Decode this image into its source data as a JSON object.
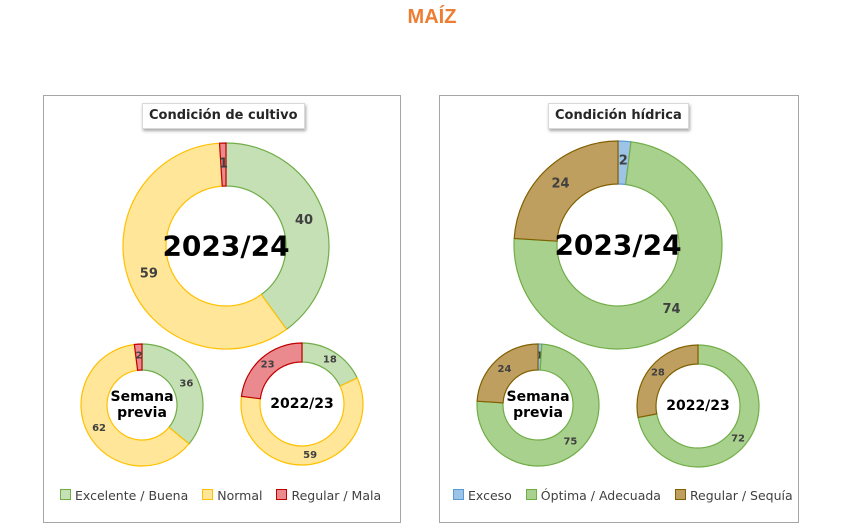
{
  "page_title": "MAÍZ",
  "panels": [
    {
      "title": "Condición  de cultivo",
      "legend": [
        {
          "label": "Excelente / Buena",
          "color": "#c5e0b4",
          "border": "#70ad47"
        },
        {
          "label": "Normal",
          "color": "#ffe699",
          "border": "#ffc000"
        },
        {
          "label": "Regular / Mala",
          "color": "#ea8a8f",
          "border": "#c00000"
        }
      ]
    },
    {
      "title": "Condición  hídrica",
      "legend": [
        {
          "label": "Exceso",
          "color": "#9dc3e6",
          "border": "#5b9bd5"
        },
        {
          "label": "Óptima / Adecuada",
          "color": "#a9d18e",
          "border": "#70ad47"
        },
        {
          "label": "Regular / Sequía",
          "color": "#bf9f5f",
          "border": "#806000"
        }
      ]
    }
  ],
  "chart_data": [
    {
      "type": "pie",
      "panel": "Condición  de cultivo",
      "center_label": "2023/24",
      "categories": [
        "Excelente / Buena",
        "Normal",
        "Regular / Mala"
      ],
      "values": [
        40,
        59,
        1
      ],
      "colors": [
        "#c5e0b4",
        "#ffe699",
        "#ea8a8f"
      ],
      "borders": [
        "#70ad47",
        "#ffc000",
        "#c00000"
      ]
    },
    {
      "type": "pie",
      "panel": "Condición  de cultivo",
      "center_label": "Semana\nprevia",
      "categories": [
        "Excelente / Buena",
        "Normal",
        "Regular / Mala"
      ],
      "values": [
        36,
        62,
        2
      ],
      "colors": [
        "#c5e0b4",
        "#ffe699",
        "#ea8a8f"
      ],
      "borders": [
        "#70ad47",
        "#ffc000",
        "#c00000"
      ]
    },
    {
      "type": "pie",
      "panel": "Condición  de cultivo",
      "center_label": "2022/23",
      "categories": [
        "Excelente / Buena",
        "Normal",
        "Regular / Mala"
      ],
      "values": [
        18,
        59,
        23
      ],
      "colors": [
        "#c5e0b4",
        "#ffe699",
        "#ea8a8f"
      ],
      "borders": [
        "#70ad47",
        "#ffc000",
        "#c00000"
      ]
    },
    {
      "type": "pie",
      "panel": "Condición  hídrica",
      "center_label": "2023/24",
      "categories": [
        "Exceso",
        "Óptima / Adecuada",
        "Regular / Sequía"
      ],
      "values": [
        2,
        74,
        24
      ],
      "colors": [
        "#9dc3e6",
        "#a9d18e",
        "#bf9f5f"
      ],
      "borders": [
        "#5b9bd5",
        "#70ad47",
        "#806000"
      ]
    },
    {
      "type": "pie",
      "panel": "Condición  hídrica",
      "center_label": "Semana\nprevia",
      "categories": [
        "Exceso",
        "Óptima / Adecuada",
        "Regular / Sequía"
      ],
      "values": [
        1,
        75,
        24
      ],
      "colors": [
        "#9dc3e6",
        "#a9d18e",
        "#bf9f5f"
      ],
      "borders": [
        "#5b9bd5",
        "#70ad47",
        "#806000"
      ]
    },
    {
      "type": "pie",
      "panel": "Condición  hídrica",
      "center_label": "2022/23",
      "categories": [
        "Exceso",
        "Óptima / Adecuada",
        "Regular / Sequía"
      ],
      "values": [
        0,
        72,
        28
      ],
      "colors": [
        "#9dc3e6",
        "#a9d18e",
        "#bf9f5f"
      ],
      "borders": [
        "#5b9bd5",
        "#70ad47",
        "#806000"
      ]
    }
  ]
}
